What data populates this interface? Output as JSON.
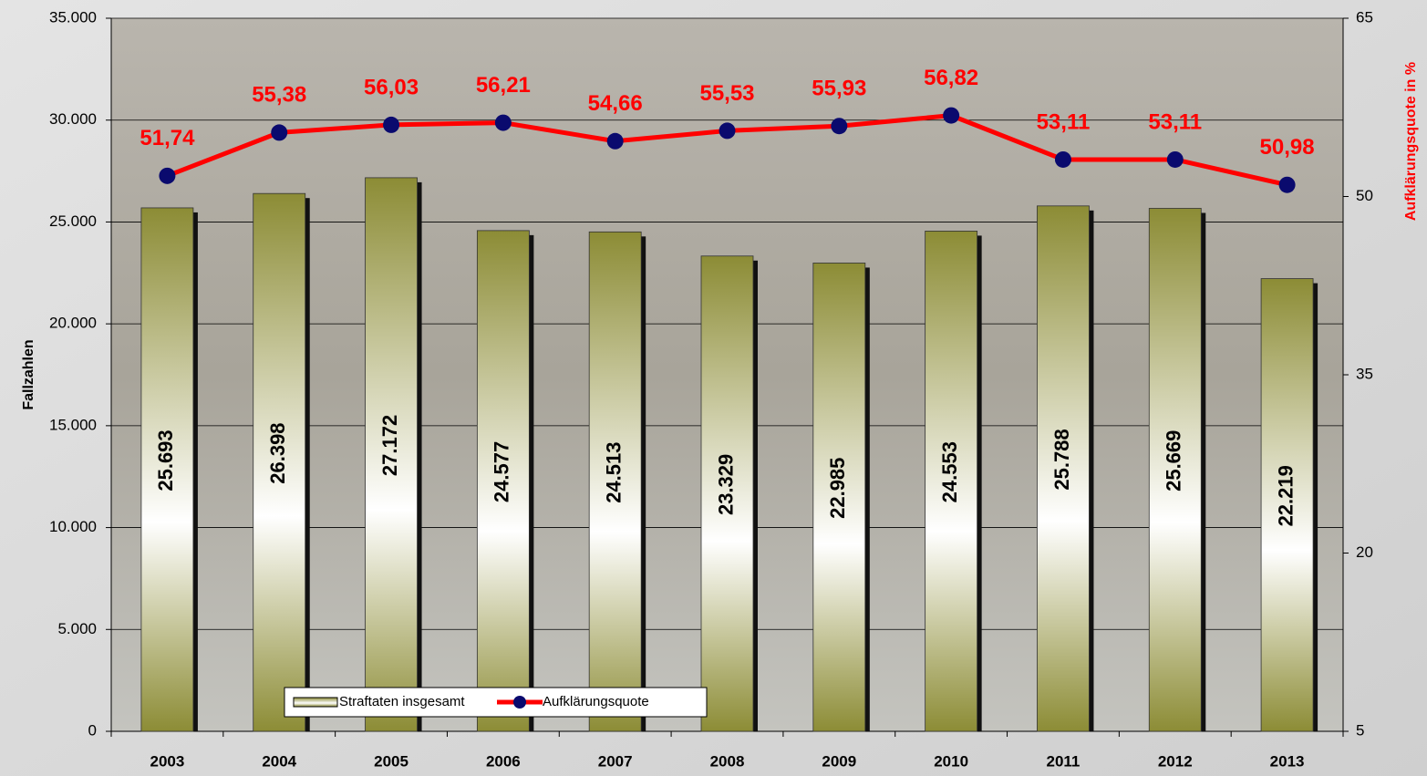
{
  "chart_data": {
    "type": "bar",
    "y_label": "Fallzahlen",
    "y2_label": "Aufklärungsquote in %",
    "categories": [
      "2003",
      "2004",
      "2005",
      "2006",
      "2007",
      "2008",
      "2009",
      "2010",
      "2011",
      "2012",
      "2013"
    ],
    "series": [
      {
        "name": "Straftaten insgesamt",
        "type": "bar",
        "color": "#8c8c35",
        "values": [
          25693,
          26398,
          27172,
          24577,
          24513,
          23329,
          22985,
          24553,
          25788,
          25669,
          22219
        ],
        "value_labels": [
          "25.693",
          "26.398",
          "27.172",
          "24.577",
          "24.513",
          "23.329",
          "22.985",
          "24.553",
          "25.788",
          "25.669",
          "22.219"
        ]
      },
      {
        "name": "Aufklärungsquote",
        "type": "line",
        "axis": "y2",
        "color": "#ff0000",
        "marker_color": "#0a0a6e",
        "values": [
          51.74,
          55.38,
          56.03,
          56.21,
          54.66,
          55.53,
          55.93,
          56.82,
          53.11,
          53.11,
          50.98
        ],
        "value_labels": [
          "51,74",
          "55,38",
          "56,03",
          "56,21",
          "54,66",
          "55,53",
          "55,93",
          "56,82",
          "53,11",
          "53,11",
          "50,98"
        ]
      }
    ],
    "ylim": [
      0,
      35000
    ],
    "yticks": [
      0,
      {
        "value": 5000,
        "label": "5.000"
      },
      {
        "value": 10000,
        "label": "10.000"
      },
      {
        "value": 15000,
        "label": "15.000"
      },
      {
        "value": 20000,
        "label": "20.000"
      },
      {
        "value": 25000,
        "label": "25.000"
      },
      {
        "value": 30000,
        "label": "30.000"
      },
      {
        "value": 35000,
        "label": "35.000"
      }
    ],
    "y2lim": [
      5,
      65
    ],
    "y2ticks": [
      5,
      20,
      35,
      50,
      65
    ],
    "grid": true,
    "legend": "bottom"
  }
}
